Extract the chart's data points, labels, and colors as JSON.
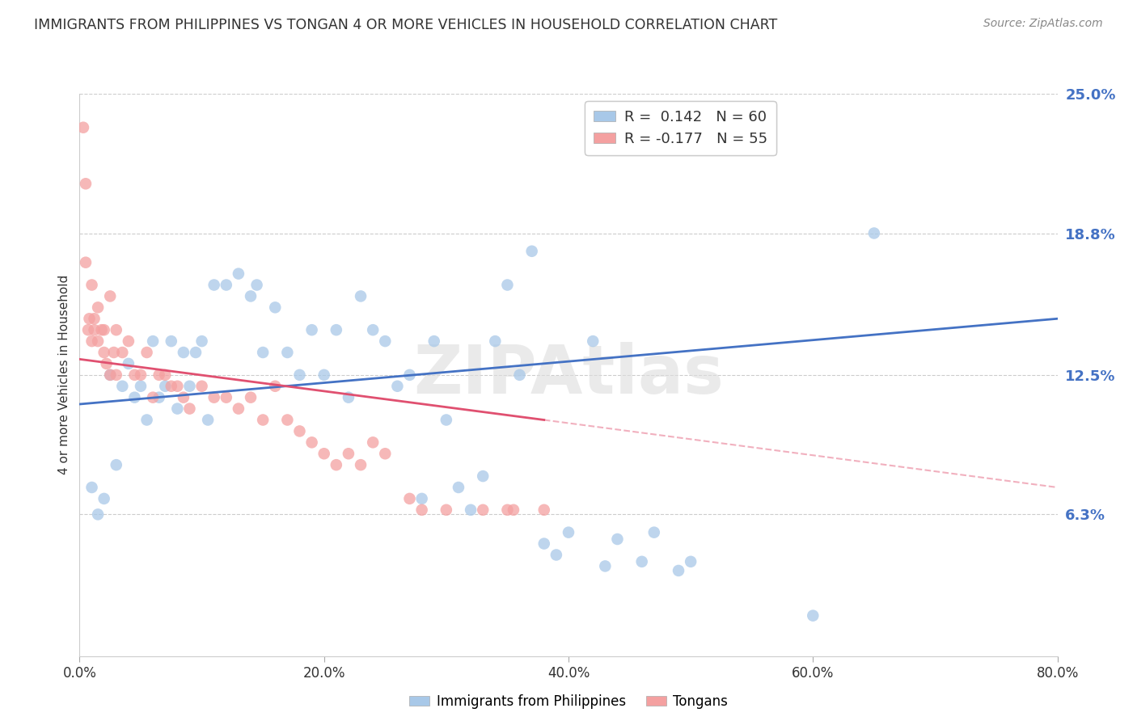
{
  "title": "IMMIGRANTS FROM PHILIPPINES VS TONGAN 4 OR MORE VEHICLES IN HOUSEHOLD CORRELATION CHART",
  "source": "Source: ZipAtlas.com",
  "ylabel": "4 or more Vehicles in Household",
  "x_tick_labels": [
    "0.0%",
    "20.0%",
    "40.0%",
    "60.0%",
    "80.0%"
  ],
  "x_tick_values": [
    0.0,
    20.0,
    40.0,
    60.0,
    80.0
  ],
  "y_tick_labels_right": [
    "25.0%",
    "18.8%",
    "12.5%",
    "6.3%"
  ],
  "y_tick_values": [
    25.0,
    18.8,
    12.5,
    6.3
  ],
  "xlim": [
    0.0,
    80.0
  ],
  "ylim": [
    0.0,
    25.0
  ],
  "legend_blue_r": "0.142",
  "legend_blue_n": "60",
  "legend_pink_r": "-0.177",
  "legend_pink_n": "55",
  "blue_color": "#a8c8e8",
  "pink_color": "#f4a0a0",
  "blue_line_color": "#4472c4",
  "pink_line_color": "#e05070",
  "watermark": "ZIPAtlas",
  "title_color": "#333333",
  "right_tick_color": "#4472c4",
  "grid_color": "#cccccc",
  "blue_line_x0": 0.0,
  "blue_line_y0": 11.2,
  "blue_line_x1": 80.0,
  "blue_line_y1": 15.0,
  "pink_line_x0": 0.0,
  "pink_line_y0": 13.2,
  "pink_line_x1": 38.0,
  "pink_line_y1": 10.5,
  "pink_dash_x0": 38.0,
  "pink_dash_y0": 10.5,
  "pink_dash_x1": 80.0,
  "pink_dash_y1": 7.5,
  "blue_scatter_x": [
    1.0,
    1.5,
    2.0,
    2.5,
    3.0,
    3.5,
    4.0,
    4.5,
    5.0,
    5.5,
    6.0,
    6.5,
    7.0,
    7.5,
    8.0,
    8.5,
    9.0,
    9.5,
    10.0,
    10.5,
    11.0,
    12.0,
    13.0,
    14.0,
    14.5,
    15.0,
    16.0,
    17.0,
    18.0,
    19.0,
    20.0,
    21.0,
    22.0,
    23.0,
    24.0,
    25.0,
    26.0,
    27.0,
    28.0,
    29.0,
    30.0,
    31.0,
    32.0,
    33.0,
    34.0,
    35.0,
    36.0,
    37.0,
    38.0,
    39.0,
    40.0,
    42.0,
    43.0,
    44.0,
    46.0,
    47.0,
    49.0,
    50.0,
    60.0,
    65.0
  ],
  "blue_scatter_y": [
    7.5,
    6.3,
    7.0,
    12.5,
    8.5,
    12.0,
    13.0,
    11.5,
    12.0,
    10.5,
    14.0,
    11.5,
    12.0,
    14.0,
    11.0,
    13.5,
    12.0,
    13.5,
    14.0,
    10.5,
    16.5,
    16.5,
    17.0,
    16.0,
    16.5,
    13.5,
    15.5,
    13.5,
    12.5,
    14.5,
    12.5,
    14.5,
    11.5,
    16.0,
    14.5,
    14.0,
    12.0,
    12.5,
    7.0,
    14.0,
    10.5,
    7.5,
    6.5,
    8.0,
    14.0,
    16.5,
    12.5,
    18.0,
    5.0,
    4.5,
    5.5,
    14.0,
    4.0,
    5.2,
    4.2,
    5.5,
    3.8,
    4.2,
    1.8,
    18.8
  ],
  "pink_scatter_x": [
    0.3,
    0.5,
    0.5,
    0.7,
    0.8,
    1.0,
    1.0,
    1.2,
    1.2,
    1.5,
    1.5,
    1.8,
    2.0,
    2.0,
    2.2,
    2.5,
    2.5,
    2.8,
    3.0,
    3.0,
    3.5,
    4.0,
    4.5,
    5.0,
    5.5,
    6.0,
    6.5,
    7.0,
    7.5,
    8.0,
    8.5,
    9.0,
    10.0,
    11.0,
    12.0,
    13.0,
    14.0,
    15.0,
    16.0,
    17.0,
    18.0,
    19.0,
    20.0,
    21.0,
    22.0,
    23.0,
    24.0,
    25.0,
    27.0,
    28.0,
    30.0,
    33.0,
    35.0,
    35.5,
    38.0
  ],
  "pink_scatter_y": [
    23.5,
    21.0,
    17.5,
    14.5,
    15.0,
    14.0,
    16.5,
    15.0,
    14.5,
    14.0,
    15.5,
    14.5,
    14.5,
    13.5,
    13.0,
    16.0,
    12.5,
    13.5,
    14.5,
    12.5,
    13.5,
    14.0,
    12.5,
    12.5,
    13.5,
    11.5,
    12.5,
    12.5,
    12.0,
    12.0,
    11.5,
    11.0,
    12.0,
    11.5,
    11.5,
    11.0,
    11.5,
    10.5,
    12.0,
    10.5,
    10.0,
    9.5,
    9.0,
    8.5,
    9.0,
    8.5,
    9.5,
    9.0,
    7.0,
    6.5,
    6.5,
    6.5,
    6.5,
    6.5,
    6.5
  ]
}
